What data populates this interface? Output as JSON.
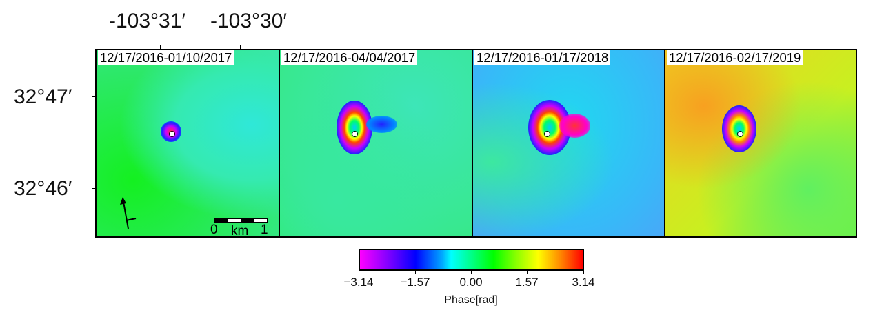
{
  "axes": {
    "lon_labels": [
      "-103°31′",
      "-103°30′"
    ],
    "lat_labels": [
      "32°47′",
      "32°46′"
    ]
  },
  "panels": [
    {
      "date_range": "12/17/2016-01/10/2017"
    },
    {
      "date_range": "12/17/2016-04/04/2017"
    },
    {
      "date_range": "12/17/2016-01/17/2018"
    },
    {
      "date_range": "12/17/2016-02/17/2019"
    }
  ],
  "scale_bar": {
    "start": "0",
    "unit": "km",
    "end": "1"
  },
  "north_arrow": "north-arrow-icon",
  "colorbar": {
    "ticks": [
      "−3.14",
      "−1.57",
      "0.00",
      "1.57",
      "3.14"
    ],
    "label": "Phase[rad]",
    "range": [
      -3.14,
      3.14
    ],
    "colors": [
      "#ff00ff",
      "#0000ff",
      "#00ffff",
      "#00ff00",
      "#ffff00",
      "#ff0000"
    ]
  }
}
